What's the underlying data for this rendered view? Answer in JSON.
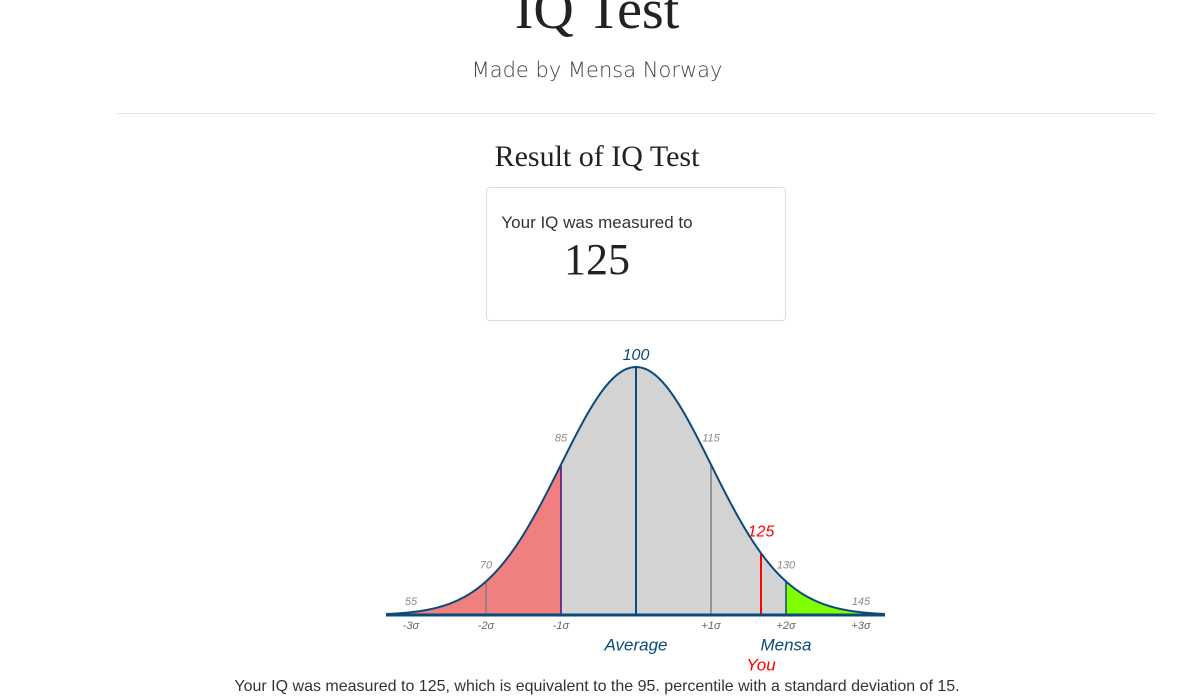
{
  "header": {
    "title": "IQ Test",
    "subtitle": "Made by Mensa Norway"
  },
  "result": {
    "heading": "Result of IQ Test",
    "intro": "Your IQ was measured to",
    "score": 125
  },
  "curve": {
    "marks": [
      55,
      70,
      85,
      100,
      115,
      130,
      145
    ],
    "sigma_labels": [
      "-3σ",
      "-2σ",
      "-1σ",
      "+1σ",
      "+2σ",
      "+3σ"
    ],
    "you": 125,
    "you_label": "You",
    "average_label": "Average",
    "mensa_label": "Mensa"
  },
  "footer": {
    "text": "Your IQ was measured to 125, which is equivalent to the 95. percentile with a standard deviation of 15."
  }
}
